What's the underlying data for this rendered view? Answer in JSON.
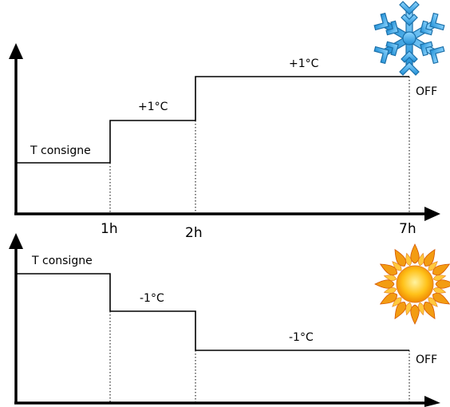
{
  "heating_mode": {
    "icon": "snowflake-icon",
    "icon_color": "#39a9e6",
    "base_label": "T consigne",
    "step1_label": "+1°C",
    "step2_label": "+1°C",
    "end_label": "OFF",
    "tick_1h": "1h",
    "tick_2h": "2h",
    "tick_7h": "7h"
  },
  "cooling_mode": {
    "icon": "sun-icon",
    "icon_color": "#f5a31a",
    "base_label": "T consigne",
    "step1_label": "-1°C",
    "step2_label": "-1°C",
    "end_label": "OFF"
  }
}
